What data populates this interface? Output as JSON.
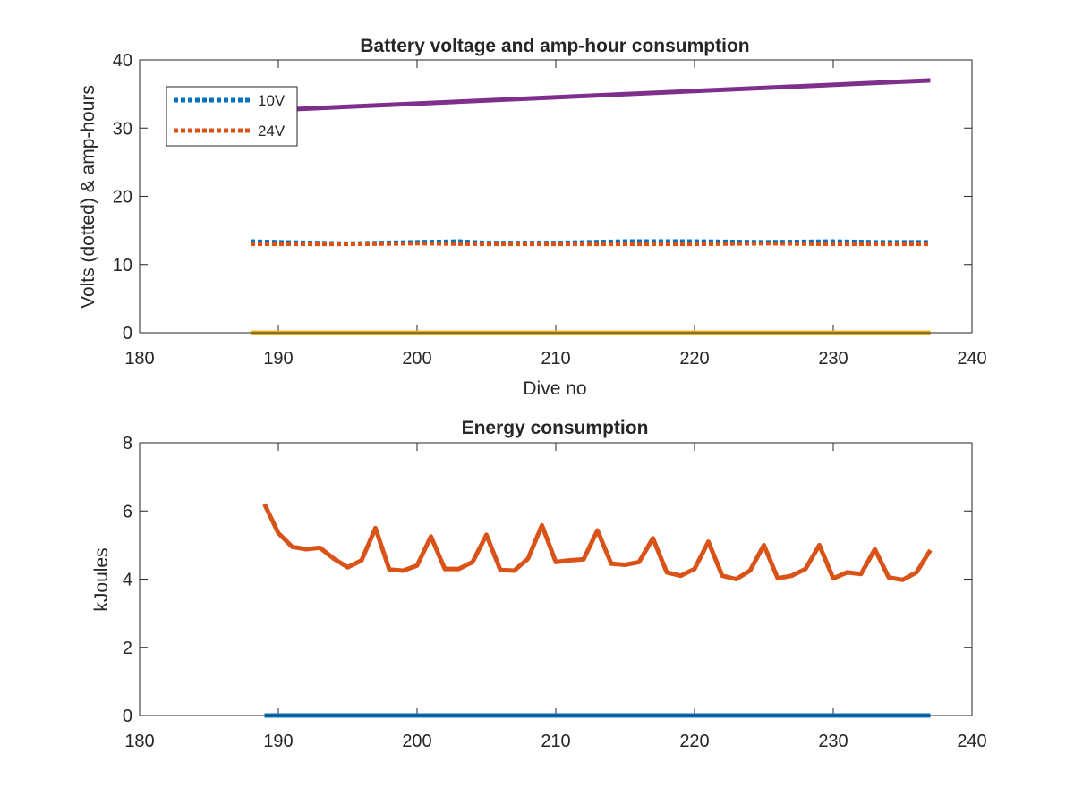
{
  "chart_data": [
    {
      "type": "line",
      "title": "Battery voltage and amp-hour consumption",
      "xlabel": "Dive no",
      "ylabel": "Volts (dotted) & amp-hours",
      "xlim": [
        180,
        240
      ],
      "ylim": [
        0,
        40
      ],
      "xticks": [
        180,
        190,
        200,
        210,
        220,
        230,
        240
      ],
      "yticks": [
        0,
        10,
        20,
        30,
        40
      ],
      "grid": false,
      "legend_position": "top-left",
      "series": [
        {
          "name": "10V",
          "color": "#0072BD",
          "style": "dotted",
          "x": [
            188,
            190,
            195,
            200,
            203,
            205,
            210,
            215,
            220,
            225,
            230,
            233,
            237
          ],
          "y": [
            13.4,
            13.3,
            13.1,
            13.3,
            13.4,
            13.2,
            13.2,
            13.4,
            13.4,
            13.3,
            13.4,
            13.3,
            13.3
          ]
        },
        {
          "name": "24V",
          "color": "#D95319",
          "style": "dotted",
          "x": [
            188,
            190,
            195,
            200,
            205,
            210,
            215,
            220,
            225,
            230,
            237
          ],
          "y": [
            13.0,
            13.0,
            13.0,
            13.1,
            13.0,
            13.0,
            13.0,
            13.0,
            13.1,
            13.0,
            13.0
          ]
        },
        {
          "color": "#EDB120",
          "style": "solid",
          "x": [
            188,
            237
          ],
          "y": [
            0,
            0
          ]
        },
        {
          "color": "#7E2F8E",
          "style": "solid",
          "x": [
            188,
            237
          ],
          "y": [
            32.5,
            37.0
          ]
        }
      ]
    },
    {
      "type": "line",
      "title": "Energy consumption",
      "xlabel": "",
      "ylabel": "kJoules",
      "xlim": [
        180,
        240
      ],
      "ylim": [
        0,
        8
      ],
      "xticks": [
        180,
        190,
        200,
        210,
        220,
        230,
        240
      ],
      "yticks": [
        0,
        2,
        4,
        6,
        8
      ],
      "grid": false,
      "series": [
        {
          "color": "#0072BD",
          "style": "solid",
          "x": [
            189,
            237
          ],
          "y": [
            0,
            0
          ]
        },
        {
          "color": "#D95319",
          "style": "solid",
          "x": [
            189,
            190,
            191,
            192,
            193,
            194,
            195,
            196,
            197,
            198,
            199,
            200,
            201,
            202,
            203,
            204,
            205,
            206,
            207,
            208,
            209,
            210,
            211,
            212,
            213,
            214,
            215,
            216,
            217,
            218,
            219,
            220,
            221,
            222,
            223,
            224,
            225,
            226,
            227,
            228,
            229,
            230,
            231,
            232,
            233,
            234,
            235,
            236,
            237
          ],
          "y": [
            6.2,
            5.35,
            4.95,
            4.88,
            4.92,
            4.6,
            4.35,
            4.55,
            5.5,
            4.28,
            4.25,
            4.4,
            5.25,
            4.3,
            4.3,
            4.5,
            5.3,
            4.27,
            4.25,
            4.6,
            5.58,
            4.5,
            4.55,
            4.58,
            5.43,
            4.45,
            4.42,
            4.5,
            5.2,
            4.2,
            4.1,
            4.3,
            5.1,
            4.1,
            4.0,
            4.25,
            5.0,
            4.02,
            4.1,
            4.3,
            5.0,
            4.02,
            4.2,
            4.15,
            4.88,
            4.05,
            3.98,
            4.2,
            4.85
          ]
        }
      ]
    }
  ]
}
